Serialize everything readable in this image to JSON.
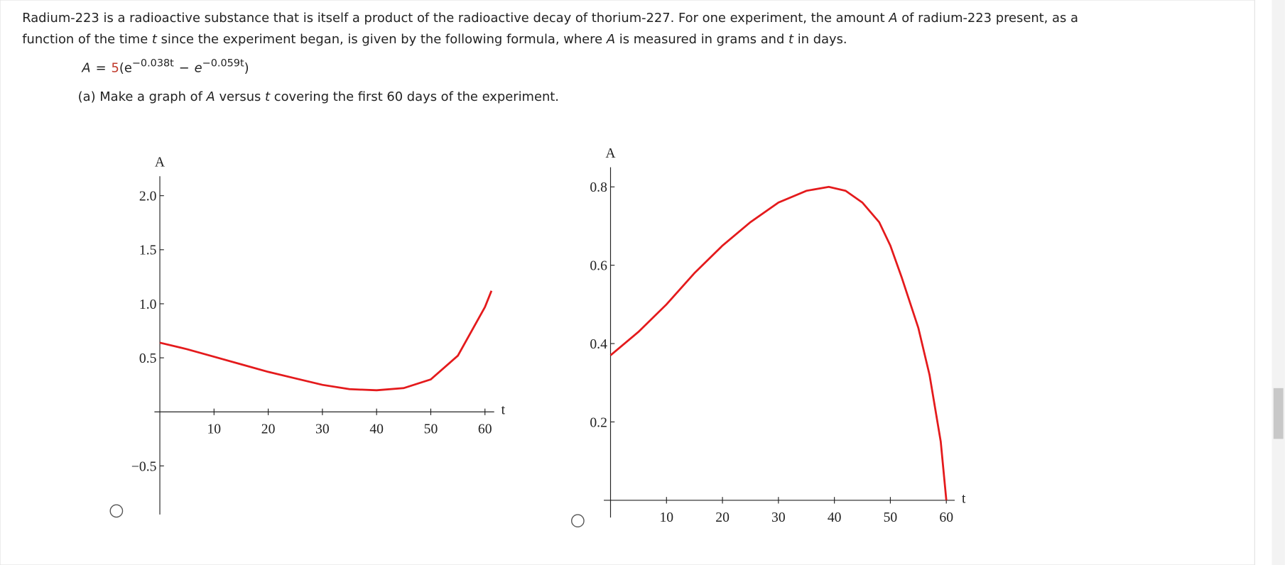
{
  "question": {
    "lines": [
      [
        "Radium-223 is a radioactive substance that is itself a product of the radioactive decay of thorium-227. For one experiment, the amount ",
        "A",
        " of radium-223 present, as a"
      ],
      [
        "function of the time ",
        "t",
        " since the experiment began, is given by the following formula, where ",
        "A",
        " is measured in grams and ",
        "t",
        " in days."
      ]
    ],
    "formula": {
      "lhs": "A",
      "eq": "=",
      "coef": "5",
      "open": "(e",
      "exp1": "−0.038t",
      "minus": "−",
      "e2": "e",
      "exp2": "−0.059t",
      "close": ")"
    },
    "part_a": [
      "(a) Make a graph of ",
      "A",
      " versus ",
      "t",
      " covering the first 60 days of the experiment."
    ]
  },
  "chart_data": [
    {
      "type": "line",
      "x_label": "t",
      "y_label": "A",
      "color": "#e41a1c",
      "x": [
        0,
        5,
        10,
        15,
        20,
        25,
        30,
        35,
        40,
        45,
        50,
        55,
        60,
        61.2
      ],
      "values": [
        0.64,
        0.58,
        0.51,
        0.44,
        0.37,
        0.31,
        0.25,
        0.21,
        0.2,
        0.22,
        0.3,
        0.52,
        0.97,
        1.12
      ],
      "xlim": [
        -1,
        61.7
      ],
      "ylim": [
        -0.95,
        2.18
      ],
      "xticks": [
        10,
        20,
        30,
        40,
        50,
        60
      ],
      "yticks": [
        {
          "value": -0.5,
          "label": "−0.5"
        },
        0.5,
        {
          "value": 1,
          "label": "1.0"
        },
        1.5,
        {
          "value": 2,
          "label": "2.0"
        }
      ]
    },
    {
      "type": "line",
      "x_label": "t",
      "y_label": "A",
      "color": "#e41a1c",
      "x": [
        0,
        5,
        10,
        15,
        20,
        25,
        30,
        35,
        39,
        42,
        45,
        48,
        50,
        52,
        55,
        57,
        59,
        60
      ],
      "values": [
        0.37,
        0.43,
        0.5,
        0.58,
        0.65,
        0.71,
        0.76,
        0.79,
        0.8,
        0.79,
        0.76,
        0.71,
        0.65,
        0.57,
        0.44,
        0.32,
        0.15,
        0
      ],
      "xlim": [
        -1.2,
        61.5
      ],
      "ylim": [
        -0.044,
        0.85
      ],
      "xticks": [
        10,
        20,
        30,
        40,
        50,
        60
      ],
      "yticks": [
        0.2,
        0.4,
        0.6,
        0.8
      ]
    }
  ]
}
